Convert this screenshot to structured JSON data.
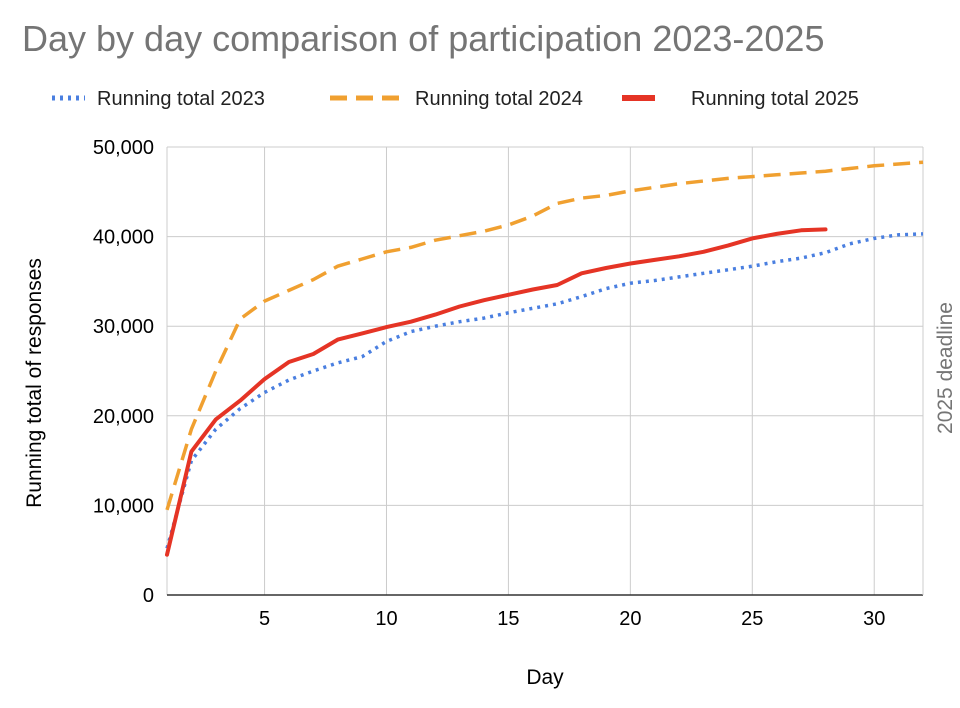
{
  "chart_data": {
    "type": "line",
    "title": "Day by day comparison of participation 2023-2025",
    "xlabel": "Day",
    "ylabel": "Running total of responses",
    "xlim": [
      1,
      32
    ],
    "ylim": [
      0,
      50000
    ],
    "x_ticks": [
      "5",
      "10",
      "15",
      "20",
      "25",
      "30"
    ],
    "y_ticks": [
      "0",
      "10,000",
      "20,000",
      "30,000",
      "40,000",
      "50,000"
    ],
    "grid": true,
    "legend_position": "top",
    "annotation": "2025 deadline",
    "series": [
      {
        "name": "Running total 2023",
        "color": "#4a7fe0",
        "style": "dotted",
        "x": [
          1,
          2,
          3,
          4,
          5,
          6,
          7,
          8,
          9,
          10,
          11,
          12,
          13,
          14,
          15,
          16,
          17,
          18,
          19,
          20,
          21,
          22,
          23,
          24,
          25,
          26,
          27,
          28,
          29,
          30,
          31,
          32
        ],
        "y": [
          5200,
          15000,
          18500,
          20800,
          22600,
          24000,
          25000,
          25900,
          26600,
          28300,
          29400,
          30000,
          30500,
          30900,
          31500,
          32000,
          32500,
          33300,
          34200,
          34800,
          35100,
          35500,
          35900,
          36300,
          36700,
          37200,
          37600,
          38200,
          39200,
          39800,
          40200,
          40300
        ]
      },
      {
        "name": "Running total 2024",
        "color": "#f0a030",
        "style": "dashed",
        "x": [
          1,
          2,
          3,
          4,
          5,
          6,
          7,
          8,
          9,
          10,
          11,
          12,
          13,
          14,
          15,
          16,
          17,
          18,
          19,
          20,
          21,
          22,
          23,
          24,
          25,
          26,
          27,
          28,
          29,
          30,
          31,
          32
        ],
        "y": [
          9500,
          18500,
          25000,
          30800,
          32800,
          34000,
          35200,
          36700,
          37500,
          38300,
          38800,
          39600,
          40100,
          40600,
          41300,
          42300,
          43700,
          44300,
          44600,
          45100,
          45500,
          45900,
          46200,
          46500,
          46700,
          46900,
          47100,
          47300,
          47600,
          47900,
          48100,
          48300
        ]
      },
      {
        "name": "Running total 2025",
        "color": "#e53425",
        "style": "solid",
        "x": [
          1,
          2,
          3,
          4,
          5,
          6,
          7,
          8,
          9,
          10,
          11,
          12,
          13,
          14,
          15,
          16,
          17,
          18,
          19,
          20,
          21,
          22,
          23,
          24,
          25,
          26,
          27,
          28
        ],
        "y": [
          4500,
          16000,
          19600,
          21700,
          24100,
          26000,
          26900,
          28500,
          29200,
          29900,
          30500,
          31300,
          32200,
          32900,
          33500,
          34100,
          34600,
          35900,
          36500,
          37000,
          37400,
          37800,
          38300,
          39000,
          39800,
          40300,
          40700,
          40800
        ]
      }
    ]
  }
}
